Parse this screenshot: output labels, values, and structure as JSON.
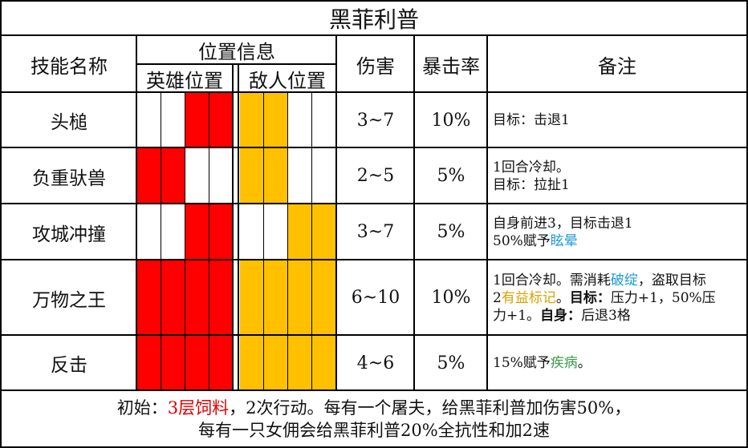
{
  "title": "黑菲利普",
  "headers": {
    "skill_name": "技能名称",
    "position_info": "位置信息",
    "hero_position": "英雄位置",
    "enemy_position": "敌人位置",
    "damage": "伤害",
    "crit_rate": "暴击率",
    "notes": "备注"
  },
  "colors": {
    "hero_active": "#ff0000",
    "enemy_active": "#ffc000",
    "inactive": "#ffffff",
    "highlight_red": "#e00000",
    "highlight_cyan": "#1b9ad6",
    "highlight_gold": "#d8a400",
    "highlight_green": "#3c9a4a"
  },
  "skills": [
    {
      "name": "头槌",
      "hero": [
        false,
        false,
        true,
        true
      ],
      "enemy": [
        true,
        true,
        false,
        false
      ],
      "damage": "3~7",
      "crit": "10%",
      "note_lines": [
        [
          {
            "t": "目标：击退1",
            "c": ""
          }
        ]
      ]
    },
    {
      "name": "负重驮兽",
      "hero": [
        true,
        true,
        false,
        false
      ],
      "enemy": [
        true,
        true,
        false,
        false
      ],
      "damage": "2~5",
      "crit": "5%",
      "note_lines": [
        [
          {
            "t": "1回合冷却。",
            "c": ""
          }
        ],
        [
          {
            "t": "目标：拉扯1",
            "c": ""
          }
        ]
      ]
    },
    {
      "name": "攻城冲撞",
      "hero": [
        false,
        false,
        true,
        true
      ],
      "enemy": [
        false,
        false,
        true,
        true
      ],
      "damage": "3~7",
      "crit": "5%",
      "note_lines": [
        [
          {
            "t": "自身前进3，目标击退1",
            "c": ""
          }
        ],
        [
          {
            "t": "50%赋予",
            "c": ""
          },
          {
            "t": "眩晕",
            "c": "cyan"
          }
        ]
      ]
    },
    {
      "name": "万物之王",
      "hero": [
        true,
        true,
        true,
        true
      ],
      "enemy": [
        true,
        true,
        true,
        true
      ],
      "damage": "6~10",
      "crit": "10%",
      "note_lines": [
        [
          {
            "t": "1回合冷却。需消耗",
            "c": ""
          },
          {
            "t": "破绽",
            "c": "cyan"
          },
          {
            "t": "，盗取目标",
            "c": ""
          }
        ],
        [
          {
            "t": "2",
            "c": ""
          },
          {
            "t": "有益标记",
            "c": "gold"
          },
          {
            "t": "。",
            "c": ""
          },
          {
            "t": "目标：",
            "c": "strong"
          },
          {
            "t": "压力+1，50%压",
            "c": ""
          }
        ],
        [
          {
            "t": "力+1。",
            "c": ""
          },
          {
            "t": "自身：",
            "c": "strong"
          },
          {
            "t": "后退3格",
            "c": ""
          }
        ]
      ]
    },
    {
      "name": "反击",
      "hero": [
        true,
        true,
        true,
        true
      ],
      "enemy": [
        true,
        true,
        true,
        true
      ],
      "damage": "4~6",
      "crit": "5%",
      "note_lines": [
        [
          {
            "t": "15%赋予",
            "c": ""
          },
          {
            "t": "疾病",
            "c": "green"
          },
          {
            "t": "。",
            "c": ""
          }
        ]
      ]
    }
  ],
  "footer": {
    "line1_parts": [
      {
        "t": "初始：",
        "c": ""
      },
      {
        "t": "3层饲料",
        "c": "red"
      },
      {
        "t": "，2次行动。每有一个屠夫，给黑菲利普加伤害50%，",
        "c": ""
      }
    ],
    "line2": "每有一只女佣会给黑菲利普20%全抗性和加2速"
  }
}
